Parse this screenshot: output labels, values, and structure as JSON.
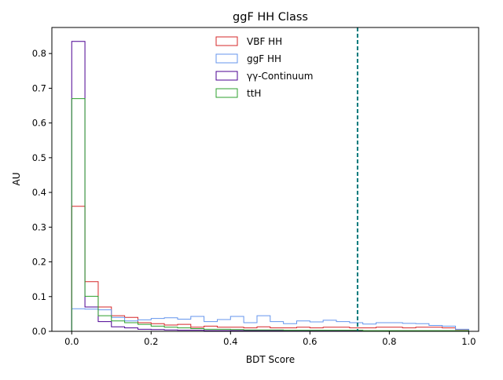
{
  "chart_data": {
    "type": "histogram",
    "title": "ggF HH Class",
    "xlabel": "BDT Score",
    "ylabel": "AU",
    "xlim": [
      -0.05,
      1.025
    ],
    "ylim": [
      0,
      0.875
    ],
    "xticks": [
      0.0,
      0.2,
      0.4,
      0.6,
      0.8,
      1.0
    ],
    "xtick_labels": [
      "0.0",
      "0.2",
      "0.4",
      "0.6",
      "0.8",
      "1.0"
    ],
    "yticks": [
      0.0,
      0.1,
      0.2,
      0.3,
      0.4,
      0.5,
      0.6,
      0.7,
      0.8
    ],
    "ytick_labels": [
      "0.0",
      "0.1",
      "0.2",
      "0.3",
      "0.4",
      "0.5",
      "0.6",
      "0.7",
      "0.8"
    ],
    "grid": false,
    "legend_position": "top-center",
    "threshold": {
      "x": 0.72,
      "color": "#00787a",
      "style": "dashed"
    },
    "bin_edges": [
      0.0,
      0.0333,
      0.0667,
      0.1,
      0.1333,
      0.1667,
      0.2,
      0.2333,
      0.2667,
      0.3,
      0.3333,
      0.3667,
      0.4,
      0.4333,
      0.4667,
      0.5,
      0.5333,
      0.5667,
      0.6,
      0.6333,
      0.6667,
      0.7,
      0.7333,
      0.7667,
      0.8,
      0.8333,
      0.8667,
      0.9,
      0.9333,
      0.9667,
      1.0
    ],
    "series": [
      {
        "name": "VBF HH",
        "color": "#d62728",
        "values": [
          0.36,
          0.143,
          0.07,
          0.045,
          0.04,
          0.025,
          0.022,
          0.018,
          0.02,
          0.012,
          0.015,
          0.012,
          0.012,
          0.01,
          0.013,
          0.01,
          0.01,
          0.012,
          0.01,
          0.012,
          0.012,
          0.01,
          0.01,
          0.012,
          0.012,
          0.01,
          0.012,
          0.012,
          0.01,
          0.005
        ]
      },
      {
        "name": "ggF HH",
        "color": "#6495ed",
        "values": [
          0.065,
          0.064,
          0.062,
          0.04,
          0.03,
          0.033,
          0.037,
          0.039,
          0.035,
          0.043,
          0.028,
          0.034,
          0.043,
          0.025,
          0.045,
          0.028,
          0.022,
          0.03,
          0.027,
          0.032,
          0.028,
          0.025,
          0.021,
          0.025,
          0.025,
          0.023,
          0.022,
          0.017,
          0.015,
          0.006
        ]
      },
      {
        "name": "γγ-Continuum",
        "color": "#4b0092",
        "values": [
          0.835,
          0.07,
          0.028,
          0.013,
          0.01,
          0.006,
          0.005,
          0.004,
          0.003,
          0.003,
          0.002,
          0.002,
          0.002,
          0.002,
          0.002,
          0.002,
          0.002,
          0.002,
          0.002,
          0.002,
          0.002,
          0.002,
          0.001,
          0.001,
          0.001,
          0.001,
          0.001,
          0.001,
          0.001,
          0.001
        ]
      },
      {
        "name": "ttH",
        "color": "#2ca02c",
        "values": [
          0.67,
          0.101,
          0.045,
          0.03,
          0.025,
          0.02,
          0.015,
          0.012,
          0.01,
          0.008,
          0.006,
          0.006,
          0.005,
          0.004,
          0.004,
          0.004,
          0.003,
          0.003,
          0.003,
          0.003,
          0.003,
          0.003,
          0.002,
          0.002,
          0.002,
          0.002,
          0.002,
          0.002,
          0.002,
          0.002
        ]
      }
    ]
  }
}
